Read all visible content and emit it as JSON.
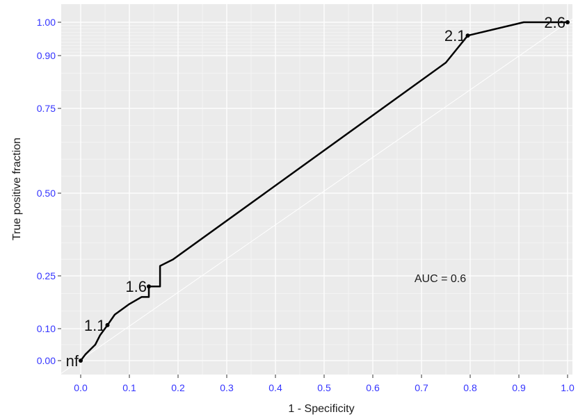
{
  "chart_data": {
    "type": "line",
    "xlabel": "1 - Specificity",
    "ylabel": "True positive fraction",
    "xlim": [
      -0.04,
      1.01
    ],
    "y_tick_values": [
      0.0,
      0.1,
      0.25,
      0.5,
      0.75,
      0.9,
      1.0
    ],
    "x_ticks": [
      "0.0",
      "0.1",
      "0.2",
      "0.3",
      "0.4",
      "0.5",
      "0.6",
      "0.7",
      "0.8",
      "0.9",
      "1.0"
    ],
    "y_ticks": [
      "0.00",
      "0.10",
      "0.25",
      "0.50",
      "0.75",
      "0.90",
      "1.00"
    ],
    "grid": true,
    "curve": {
      "x": [
        0.0,
        0.01,
        0.02,
        0.03,
        0.04,
        0.055,
        0.07,
        0.1,
        0.125,
        0.14,
        0.14,
        0.163,
        0.163,
        0.19,
        0.75,
        0.795,
        0.91,
        1.0
      ],
      "y": [
        0.0,
        0.02,
        0.035,
        0.05,
        0.08,
        0.11,
        0.14,
        0.17,
        0.19,
        0.19,
        0.22,
        0.22,
        0.28,
        0.3,
        0.88,
        0.96,
        1.0,
        1.0
      ]
    },
    "cutoffs": [
      {
        "label": "nf",
        "x": 0.0,
        "y": 0.0
      },
      {
        "label": "1.1",
        "x": 0.055,
        "y": 0.11
      },
      {
        "label": "1.6",
        "x": 0.14,
        "y": 0.22
      },
      {
        "label": "2.1",
        "x": 0.795,
        "y": 0.96
      },
      {
        "label": "2.6",
        "x": 1.0,
        "y": 1.0
      }
    ],
    "annotation": "AUC = 0.6"
  }
}
